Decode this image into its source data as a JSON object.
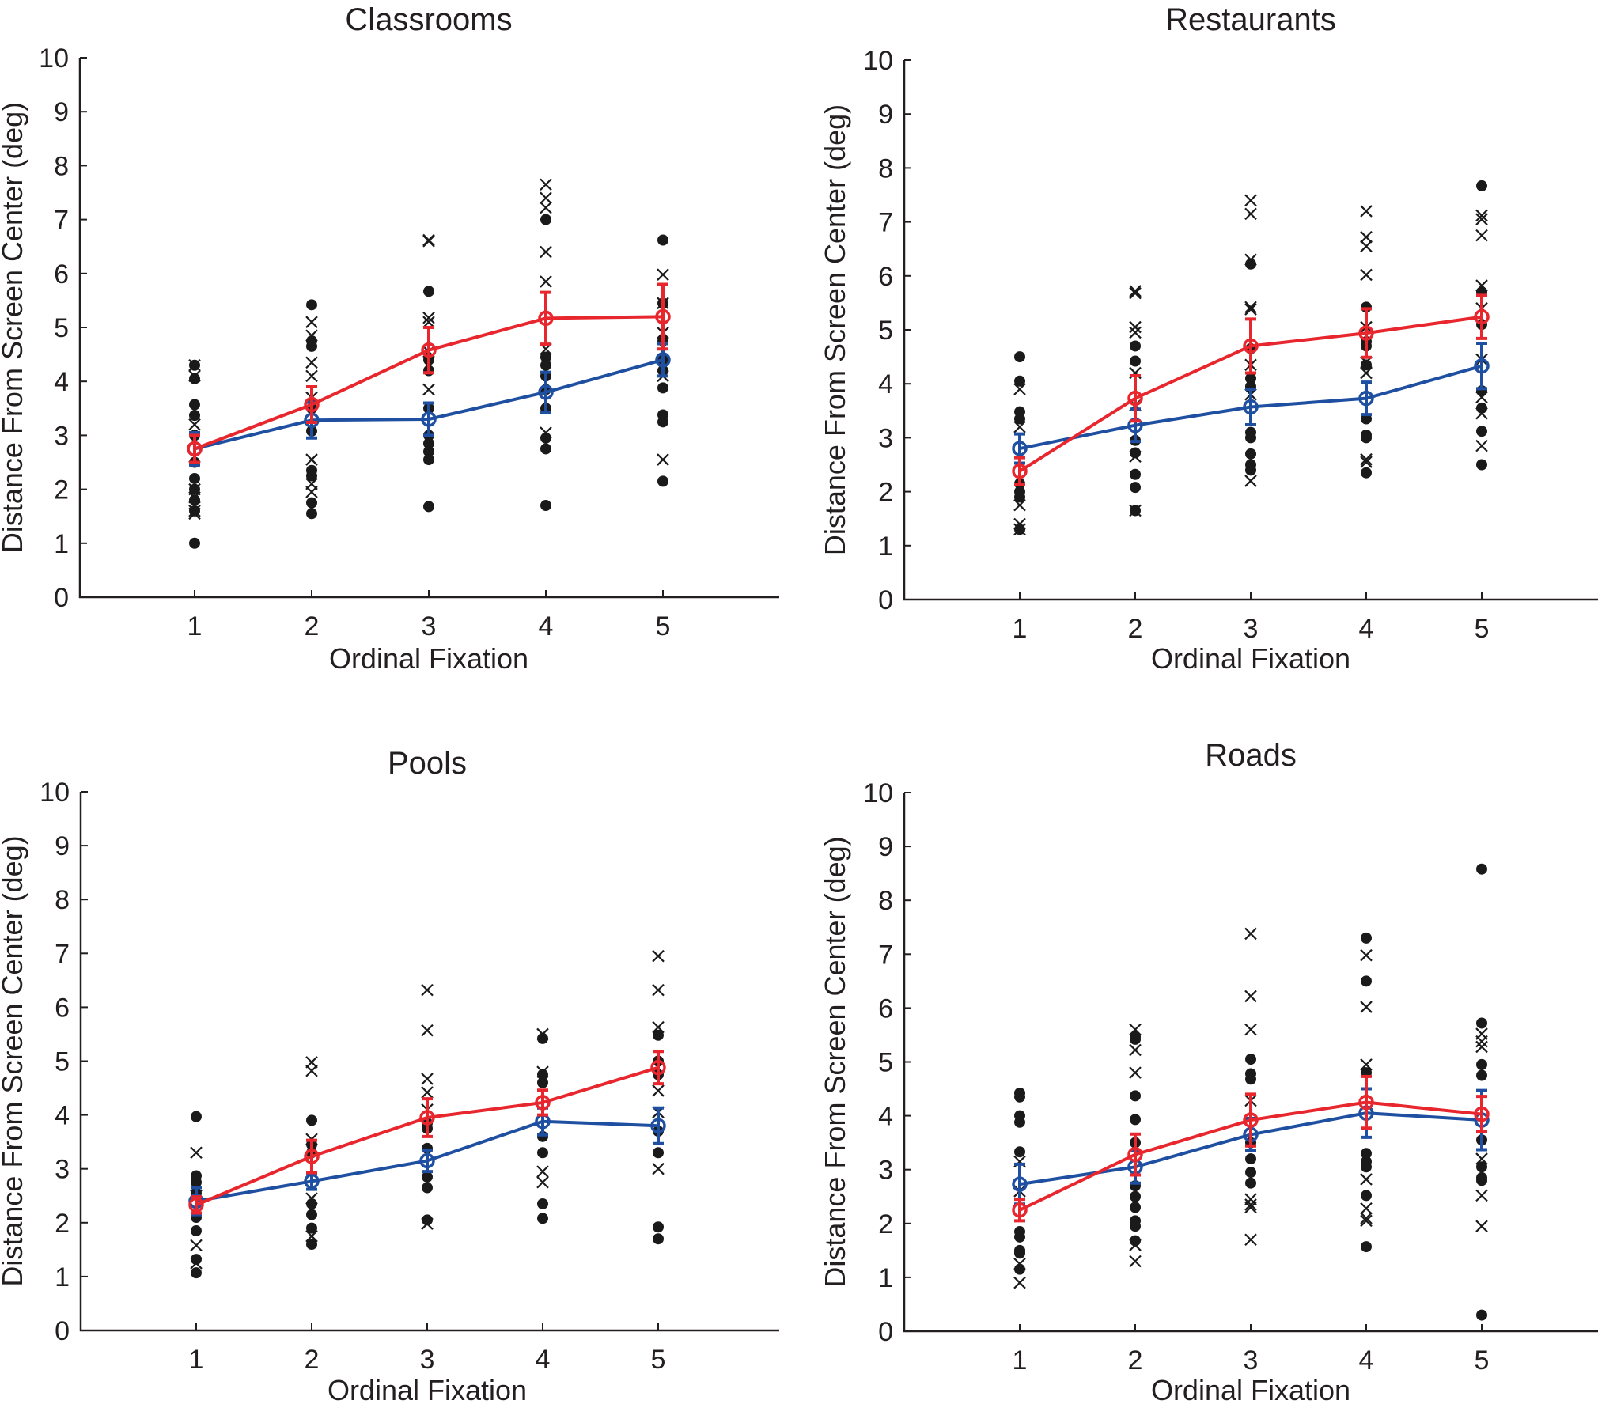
{
  "figure": {
    "colors": {
      "series_red": "#e8262d",
      "series_blue": "#1f4fa0",
      "scatter": "#1a1a1a",
      "axis": "#231f20"
    }
  },
  "chart_data": [
    {
      "type": "scatter",
      "title": "Classrooms",
      "xlabel": "Ordinal Fixation",
      "ylabel": "Distance From Screen Center (deg)",
      "x": [
        1,
        2,
        3,
        4,
        5
      ],
      "xlim": [
        0,
        5.9
      ],
      "ylim": [
        0,
        10
      ],
      "yticks": [
        0,
        1,
        2,
        3,
        4,
        5,
        6,
        7,
        8,
        9,
        10
      ],
      "xticks": [
        1,
        2,
        3,
        4,
        5
      ],
      "grid": false,
      "series": [
        {
          "name": "red-mean",
          "color": "red",
          "values": [
            2.75,
            3.57,
            4.58,
            5.17,
            5.2
          ],
          "errors": [
            0.25,
            0.33,
            0.42,
            0.48,
            0.6
          ]
        },
        {
          "name": "blue-mean",
          "color": "blue",
          "values": [
            2.75,
            3.28,
            3.3,
            3.8,
            4.4
          ],
          "errors": [
            0.3,
            0.33,
            0.3,
            0.37,
            0.3
          ]
        }
      ],
      "dots": [
        [
          4.3,
          4.05,
          3.57,
          3.37,
          3.0,
          2.5,
          2.2,
          2.0,
          1.8,
          1.6,
          1.0
        ],
        [
          5.42,
          4.75,
          4.65,
          3.5,
          3.08,
          2.35,
          2.25,
          1.75,
          1.55
        ],
        [
          5.67,
          4.4,
          4.2,
          3.5,
          3.0,
          2.85,
          2.7,
          2.55,
          1.68
        ],
        [
          7.0,
          4.45,
          4.3,
          4.1,
          3.85,
          3.5,
          2.95,
          2.75,
          1.7
        ],
        [
          6.62,
          5.45,
          4.75,
          4.4,
          4.2,
          3.88,
          3.38,
          3.25,
          2.15
        ]
      ],
      "crosses": [
        [
          4.3,
          4.1,
          3.2,
          2.6,
          2.0,
          1.85,
          1.6,
          1.55
        ],
        [
          5.1,
          4.85,
          4.35,
          4.1,
          3.7,
          2.55,
          2.1,
          1.95
        ],
        [
          6.62,
          6.6,
          5.18,
          5.1,
          4.55,
          3.85
        ],
        [
          7.65,
          7.4,
          7.22,
          6.4,
          5.85,
          4.6,
          3.05
        ],
        [
          5.98,
          5.45,
          4.9,
          4.1,
          2.55
        ]
      ]
    },
    {
      "type": "scatter",
      "title": "Restaurants",
      "xlabel": "Ordinal Fixation",
      "ylabel": "Distance From Screen Center (deg)",
      "x": [
        1,
        2,
        3,
        4,
        5
      ],
      "xlim": [
        0,
        5.9
      ],
      "ylim": [
        0,
        10
      ],
      "yticks": [
        0,
        1,
        2,
        3,
        4,
        5,
        6,
        7,
        8,
        9,
        10
      ],
      "xticks": [
        1,
        2,
        3,
        4,
        5
      ],
      "grid": false,
      "series": [
        {
          "name": "red-mean",
          "color": "red",
          "values": [
            2.38,
            3.73,
            4.7,
            4.94,
            5.24
          ],
          "errors": [
            0.25,
            0.42,
            0.5,
            0.45,
            0.4
          ]
        },
        {
          "name": "blue-mean",
          "color": "blue",
          "values": [
            2.8,
            3.23,
            3.57,
            3.73,
            4.33
          ],
          "errors": [
            0.27,
            0.3,
            0.33,
            0.3,
            0.42
          ]
        }
      ],
      "dots": [
        [
          4.5,
          4.05,
          3.48,
          3.35,
          2.15,
          2.0,
          1.9,
          1.3
        ],
        [
          4.7,
          4.42,
          2.95,
          2.72,
          2.32,
          2.08,
          1.65
        ],
        [
          6.22,
          4.65,
          4.1,
          3.95,
          3.1,
          3.0,
          2.7,
          2.5,
          2.4
        ],
        [
          5.42,
          4.78,
          4.7,
          4.35,
          3.35,
          3.05,
          3.0,
          2.35
        ],
        [
          7.67,
          5.7,
          5.1,
          3.87,
          3.55,
          3.12,
          2.5
        ]
      ],
      "crosses": [
        [
          3.9,
          3.2,
          1.75,
          1.4,
          1.3
        ],
        [
          5.72,
          5.68,
          5.05,
          4.95,
          4.2,
          3.6,
          2.65,
          1.65
        ],
        [
          7.4,
          7.15,
          6.3,
          5.42,
          5.38,
          4.35,
          3.8,
          2.2
        ],
        [
          7.2,
          6.72,
          6.55,
          6.02,
          5.05,
          4.4,
          4.2,
          2.6,
          2.55
        ],
        [
          7.12,
          7.05,
          6.75,
          5.82,
          5.4,
          4.45,
          3.75,
          3.45,
          2.85
        ]
      ]
    },
    {
      "type": "scatter",
      "title": "Pools",
      "xlabel": "Ordinal Fixation",
      "ylabel": "Distance From Screen Center (deg)",
      "x": [
        1,
        2,
        3,
        4,
        5
      ],
      "xlim": [
        0,
        5.9
      ],
      "ylim": [
        0,
        10
      ],
      "yticks": [
        0,
        1,
        2,
        3,
        4,
        5,
        6,
        7,
        8,
        9,
        10
      ],
      "xticks": [
        1,
        2,
        3,
        4,
        5
      ],
      "grid": false,
      "series": [
        {
          "name": "red-mean",
          "color": "red",
          "values": [
            2.33,
            3.23,
            3.95,
            4.23,
            4.88
          ],
          "errors": [
            0.15,
            0.3,
            0.35,
            0.23,
            0.3
          ]
        },
        {
          "name": "blue-mean",
          "color": "blue",
          "values": [
            2.4,
            2.77,
            3.15,
            3.88,
            3.8
          ],
          "errors": [
            0.25,
            0.15,
            0.2,
            0.25,
            0.33
          ]
        }
      ],
      "dots": [
        [
          3.97,
          2.87,
          2.75,
          2.55,
          2.1,
          1.85,
          1.32,
          1.07
        ],
        [
          3.9,
          3.45,
          3.3,
          2.35,
          2.15,
          1.9,
          1.6
        ],
        [
          3.85,
          3.75,
          3.38,
          2.85,
          2.65,
          2.05
        ],
        [
          5.42,
          4.75,
          4.6,
          3.6,
          3.3,
          2.35,
          2.08
        ],
        [
          5.48,
          5.0,
          4.75,
          3.7,
          3.3,
          1.92,
          1.7
        ]
      ],
      "crosses": [
        [
          3.3,
          2.5,
          1.58,
          1.25
        ],
        [
          4.98,
          4.82,
          3.55,
          2.45,
          1.75
        ],
        [
          6.32,
          5.57,
          4.67,
          4.42,
          4.1,
          1.98
        ],
        [
          5.5,
          4.8,
          2.95,
          2.75
        ],
        [
          6.95,
          6.32,
          5.63,
          4.45,
          4.05,
          3.0
        ]
      ]
    },
    {
      "type": "scatter",
      "title": "Roads",
      "xlabel": "Ordinal Fixation",
      "ylabel": "Distance From Screen Center (deg)",
      "x": [
        1,
        2,
        3,
        4,
        5
      ],
      "xlim": [
        0,
        5.9
      ],
      "ylim": [
        0,
        10
      ],
      "yticks": [
        0,
        1,
        2,
        3,
        4,
        5,
        6,
        7,
        8,
        9,
        10
      ],
      "xticks": [
        1,
        2,
        3,
        4,
        5
      ],
      "grid": false,
      "series": [
        {
          "name": "red-mean",
          "color": "red",
          "values": [
            2.25,
            3.28,
            3.92,
            4.25,
            4.03
          ],
          "errors": [
            0.2,
            0.38,
            0.48,
            0.48,
            0.33
          ]
        },
        {
          "name": "blue-mean",
          "color": "blue",
          "values": [
            2.73,
            3.05,
            3.65,
            4.05,
            3.92
          ],
          "errors": [
            0.37,
            0.3,
            0.3,
            0.45,
            0.55
          ]
        }
      ],
      "dots": [
        [
          4.42,
          4.35,
          4.0,
          3.88,
          3.33,
          1.85,
          1.75,
          1.5,
          1.45,
          1.15
        ],
        [
          5.47,
          5.42,
          4.37,
          3.93,
          3.5,
          2.7,
          2.5,
          2.3,
          2.05,
          1.95,
          1.68
        ],
        [
          5.05,
          4.78,
          4.68,
          3.5,
          3.2,
          2.95,
          2.75
        ],
        [
          7.3,
          6.5,
          4.8,
          3.3,
          3.15,
          3.05,
          2.52,
          1.57
        ],
        [
          8.58,
          5.72,
          4.95,
          4.75,
          3.55,
          3.05,
          2.85,
          2.8,
          0.3
        ]
      ],
      "crosses": [
        [
          3.15,
          2.6,
          1.25,
          0.9
        ],
        [
          5.6,
          5.22,
          4.8,
          1.6,
          1.3
        ],
        [
          7.38,
          6.22,
          5.6,
          4.28,
          2.45,
          2.35,
          2.3,
          1.7
        ],
        [
          6.98,
          6.02,
          4.95,
          2.82,
          2.28,
          2.1,
          2.05
        ],
        [
          5.52,
          5.38,
          5.28,
          3.2,
          2.52,
          1.95
        ]
      ]
    }
  ]
}
